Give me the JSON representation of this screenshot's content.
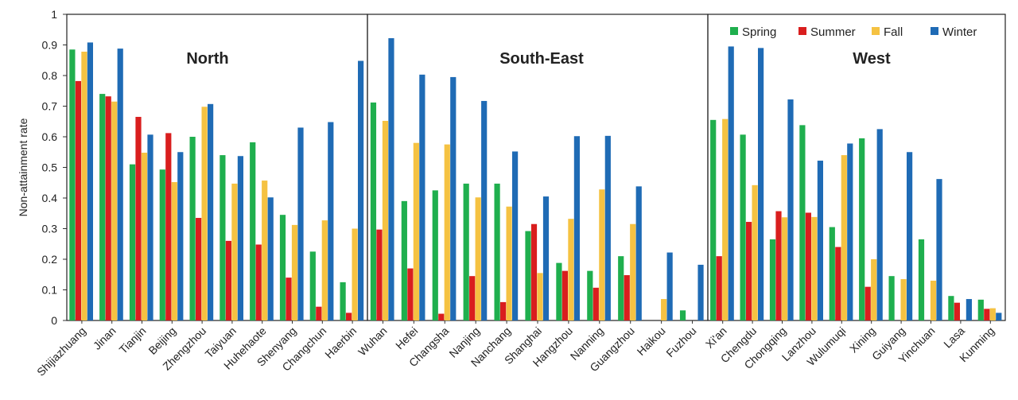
{
  "chart_data": {
    "type": "bar",
    "ylabel": "Non-attainment rate",
    "ylim": [
      0,
      1
    ],
    "yticks": [
      "0",
      "0.1",
      "0.2",
      "0.3",
      "0.4",
      "0.5",
      "0.6",
      "0.7",
      "0.8",
      "0.9",
      "1"
    ],
    "grid": false,
    "legend_position": "top-right",
    "series": [
      {
        "name": "Spring",
        "color": "#1faf4e"
      },
      {
        "name": "Summer",
        "color": "#d91e1e"
      },
      {
        "name": "Fall",
        "color": "#f5c242"
      },
      {
        "name": "Winter",
        "color": "#1f6bb5"
      }
    ],
    "panels": [
      {
        "title": "North",
        "categories": [
          "Shijiazhuang",
          "Jinan",
          "Tianjin",
          "Beijing",
          "Zhengzhou",
          "Taiyuan",
          "Huhehaote",
          "Shenyang",
          "Changchun",
          "Haerbin"
        ],
        "values": {
          "Spring": [
            0.885,
            0.74,
            0.51,
            0.493,
            0.6,
            0.54,
            0.582,
            0.345,
            0.225,
            0.125
          ],
          "Summer": [
            0.782,
            0.732,
            0.665,
            0.612,
            0.335,
            0.26,
            0.248,
            0.14,
            0.045,
            0.025
          ],
          "Fall": [
            0.878,
            0.715,
            0.548,
            0.452,
            0.698,
            0.447,
            0.457,
            0.312,
            0.327,
            0.3
          ],
          "Winter": [
            0.908,
            0.888,
            0.607,
            0.55,
            0.707,
            0.537,
            0.402,
            0.63,
            0.648,
            0.848
          ]
        }
      },
      {
        "title": "South-East",
        "categories": [
          "Wuhan",
          "Hefei",
          "Changsha",
          "Nanjing",
          "Nanchang",
          "Shanghai",
          "Hangzhou",
          "Nanning",
          "Guangzhou",
          "Haikou",
          "Fuzhou"
        ],
        "values": {
          "Spring": [
            0.712,
            0.39,
            0.425,
            0.447,
            0.447,
            0.292,
            0.188,
            0.162,
            0.21,
            0,
            0.033
          ],
          "Summer": [
            0.297,
            0.17,
            0.022,
            0.145,
            0.06,
            0.315,
            0.162,
            0.107,
            0.148,
            0,
            0
          ],
          "Fall": [
            0.652,
            0.58,
            0.575,
            0.402,
            0.372,
            0.155,
            0.332,
            0.428,
            0.315,
            0.07,
            0
          ],
          "Winter": [
            0.922,
            0.803,
            0.795,
            0.717,
            0.552,
            0.405,
            0.602,
            0.603,
            0.438,
            0.222,
            0.182
          ]
        }
      },
      {
        "title": "West",
        "categories": [
          "Xi'an",
          "Chengdu",
          "Chongqing",
          "Lanzhou",
          "Wulumuqi",
          "Xining",
          "Guiyang",
          "Yinchuan",
          "Lasa",
          "Kunming"
        ],
        "values": {
          "Spring": [
            0.655,
            0.607,
            0.265,
            0.638,
            0.305,
            0.595,
            0.145,
            0.265,
            0.08,
            0.068
          ],
          "Summer": [
            0.21,
            0.322,
            0.357,
            0.352,
            0.24,
            0.11,
            0,
            0,
            0.058,
            0.038
          ],
          "Fall": [
            0.658,
            0.442,
            0.337,
            0.338,
            0.54,
            0.2,
            0.135,
            0.13,
            0,
            0.04
          ],
          "Winter": [
            0.895,
            0.89,
            0.722,
            0.522,
            0.578,
            0.625,
            0.55,
            0.462,
            0.07,
            0.025
          ]
        }
      }
    ]
  }
}
